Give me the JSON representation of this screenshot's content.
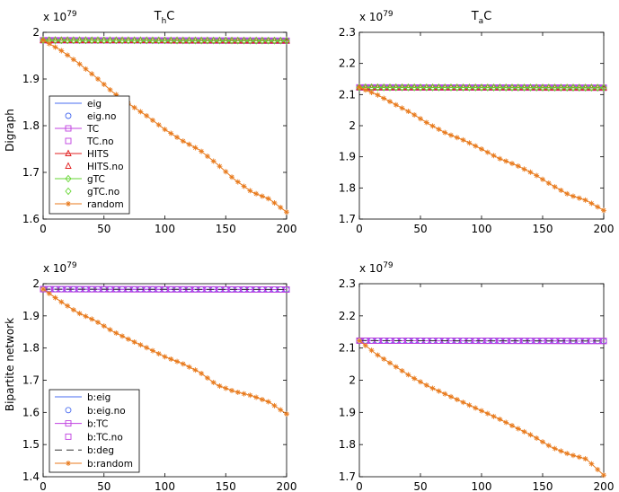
{
  "figure": {
    "row_labels": [
      "Digraph",
      "Bipartite network"
    ],
    "column_titles": [
      {
        "main": "T",
        "sub": "h",
        "rest": "C"
      },
      {
        "main": "T",
        "sub": "a",
        "rest": "C"
      }
    ],
    "exponent_label": {
      "base": "x 10",
      "exp": "79"
    },
    "colors": {
      "eig": "#4a6cf0",
      "TC": "#c040e0",
      "HITS": "#e02020",
      "gTC": "#66d633",
      "random": "#e87a1c",
      "deg": "#333333"
    }
  },
  "chart_data": [
    {
      "id": "p1",
      "row": 0,
      "col": 0,
      "type": "line",
      "title": "T_hC",
      "ylabel": "Digraph",
      "xlim": [
        0,
        200
      ],
      "ylim": [
        1.6,
        2.0
      ],
      "xticks": [
        0,
        50,
        100,
        150,
        200
      ],
      "xtick_labels": [
        "0",
        "50",
        "100",
        "150",
        "200"
      ],
      "yticks": [
        1.6,
        1.7,
        1.8,
        1.9,
        2.0
      ],
      "ytick_labels": [
        "1.6",
        "1.7",
        "1.8",
        "1.9",
        "2"
      ],
      "y_scale_note": "x 10^79",
      "series": [
        {
          "name": "eig",
          "color": "#4a6cf0",
          "marker": "none",
          "dash": "",
          "values": [
            1.983,
            1.982
          ]
        },
        {
          "name": "eig.no",
          "color": "#4a6cf0",
          "marker": "circle",
          "dash": "none",
          "values": [
            1.983,
            1.982
          ]
        },
        {
          "name": "TC",
          "color": "#c040e0",
          "marker": "square",
          "dash": "",
          "values": [
            1.983,
            1.982
          ]
        },
        {
          "name": "TC.no",
          "color": "#c040e0",
          "marker": "square",
          "dash": "none",
          "values": [
            1.983,
            1.982
          ]
        },
        {
          "name": "HITS",
          "color": "#e02020",
          "marker": "triangle",
          "dash": "",
          "values": [
            1.983,
            1.982
          ]
        },
        {
          "name": "HITS.no",
          "color": "#e02020",
          "marker": "triangle",
          "dash": "none",
          "values": [
            1.983,
            1.982
          ]
        },
        {
          "name": "gTC",
          "color": "#66d633",
          "marker": "diamond",
          "dash": "",
          "values": [
            1.983,
            1.982
          ]
        },
        {
          "name": "gTC.no",
          "color": "#66d633",
          "marker": "diamond",
          "dash": "none",
          "values": [
            1.983,
            1.982
          ]
        },
        {
          "name": "random",
          "color": "#e87a1c",
          "marker": "star",
          "dash": "",
          "values": [
            1.983,
            1.962,
            1.935,
            1.905,
            1.872,
            1.845,
            1.82,
            1.792,
            1.768,
            1.748,
            1.718,
            1.685,
            1.658,
            1.643,
            1.615
          ]
        }
      ],
      "legend": {
        "position": "left",
        "entries": [
          "eig",
          "eig.no",
          "TC",
          "TC.no",
          "HITS",
          "HITS.no",
          "gTC",
          "gTC.no",
          "random"
        ]
      }
    },
    {
      "id": "p2",
      "row": 0,
      "col": 1,
      "type": "line",
      "title": "T_aC",
      "xlim": [
        0,
        200
      ],
      "ylim": [
        1.7,
        2.3
      ],
      "xticks": [
        0,
        50,
        100,
        150,
        200
      ],
      "xtick_labels": [
        "0",
        "50",
        "100",
        "150",
        "200"
      ],
      "yticks": [
        1.7,
        1.8,
        1.9,
        2.0,
        2.1,
        2.2,
        2.3
      ],
      "ytick_labels": [
        "1.7",
        "1.8",
        "1.9",
        "2",
        "2.1",
        "2.2",
        "2.3"
      ],
      "y_scale_note": "x 10^79",
      "series": [
        {
          "name": "eig",
          "color": "#4a6cf0",
          "marker": "none",
          "dash": "",
          "values": [
            2.123,
            2.122
          ]
        },
        {
          "name": "eig.no",
          "color": "#4a6cf0",
          "marker": "circle",
          "dash": "none",
          "values": [
            2.123,
            2.122
          ]
        },
        {
          "name": "TC",
          "color": "#c040e0",
          "marker": "square",
          "dash": "",
          "values": [
            2.123,
            2.122
          ]
        },
        {
          "name": "TC.no",
          "color": "#c040e0",
          "marker": "square",
          "dash": "none",
          "values": [
            2.123,
            2.122
          ]
        },
        {
          "name": "HITS",
          "color": "#e02020",
          "marker": "triangle",
          "dash": "",
          "values": [
            2.123,
            2.122
          ]
        },
        {
          "name": "HITS.no",
          "color": "#e02020",
          "marker": "triangle",
          "dash": "none",
          "values": [
            2.123,
            2.122
          ]
        },
        {
          "name": "gTC",
          "color": "#66d633",
          "marker": "diamond",
          "dash": "",
          "values": [
            2.123,
            2.122
          ]
        },
        {
          "name": "gTC.no",
          "color": "#66d633",
          "marker": "diamond",
          "dash": "none",
          "values": [
            2.123,
            2.122
          ]
        },
        {
          "name": "random",
          "color": "#e87a1c",
          "marker": "star",
          "dash": "",
          "values": [
            2.123,
            2.1,
            2.07,
            2.04,
            2.005,
            1.975,
            1.953,
            1.925,
            1.895,
            1.873,
            1.845,
            1.81,
            1.778,
            1.76,
            1.728
          ]
        }
      ]
    },
    {
      "id": "p3",
      "row": 1,
      "col": 0,
      "type": "line",
      "ylabel": "Bipartite network",
      "xlim": [
        0,
        200
      ],
      "ylim": [
        1.4,
        2.0
      ],
      "xticks": [
        0,
        50,
        100,
        150,
        200
      ],
      "xtick_labels": [
        "0",
        "50",
        "100",
        "150",
        "200"
      ],
      "yticks": [
        1.4,
        1.5,
        1.6,
        1.7,
        1.8,
        1.9,
        2.0
      ],
      "ytick_labels": [
        "1.4",
        "1.5",
        "1.6",
        "1.7",
        "1.8",
        "1.9",
        "2"
      ],
      "y_scale_note": "x 10^79",
      "series": [
        {
          "name": "b:eig",
          "color": "#4a6cf0",
          "marker": "none",
          "dash": "",
          "values": [
            1.983,
            1.982
          ]
        },
        {
          "name": "b:eig.no",
          "color": "#4a6cf0",
          "marker": "circle",
          "dash": "none",
          "values": [
            1.983,
            1.982
          ]
        },
        {
          "name": "b:TC",
          "color": "#c040e0",
          "marker": "square",
          "dash": "",
          "values": [
            1.983,
            1.982
          ]
        },
        {
          "name": "b:TC.no",
          "color": "#c040e0",
          "marker": "square",
          "dash": "none",
          "values": [
            1.983,
            1.982
          ]
        },
        {
          "name": "b:deg",
          "color": "#333333",
          "marker": "none",
          "dash": "8,5",
          "values": [
            1.983,
            1.982
          ]
        },
        {
          "name": "b:random",
          "color": "#e87a1c",
          "marker": "star",
          "dash": "",
          "values": [
            1.983,
            1.945,
            1.91,
            1.885,
            1.852,
            1.825,
            1.8,
            1.773,
            1.752,
            1.725,
            1.685,
            1.665,
            1.652,
            1.632,
            1.595
          ]
        }
      ],
      "legend": {
        "position": "bottom-left",
        "entries": [
          "b:eig",
          "b:eig.no",
          "b:TC",
          "b:TC.no",
          "b:deg",
          "b:random"
        ]
      }
    },
    {
      "id": "p4",
      "row": 1,
      "col": 1,
      "type": "line",
      "xlim": [
        0,
        200
      ],
      "ylim": [
        1.7,
        2.3
      ],
      "xticks": [
        0,
        50,
        100,
        150,
        200
      ],
      "xtick_labels": [
        "0",
        "50",
        "100",
        "150",
        "200"
      ],
      "yticks": [
        1.7,
        1.8,
        1.9,
        2.0,
        2.1,
        2.2,
        2.3
      ],
      "ytick_labels": [
        "1.7",
        "1.8",
        "1.9",
        "2",
        "2.1",
        "2.2",
        "2.3"
      ],
      "y_scale_note": "x 10^79",
      "series": [
        {
          "name": "b:eig",
          "color": "#4a6cf0",
          "marker": "none",
          "dash": "",
          "values": [
            2.123,
            2.122
          ]
        },
        {
          "name": "b:eig.no",
          "color": "#4a6cf0",
          "marker": "circle",
          "dash": "none",
          "values": [
            2.123,
            2.122
          ]
        },
        {
          "name": "b:TC",
          "color": "#c040e0",
          "marker": "square",
          "dash": "",
          "values": [
            2.123,
            2.122
          ]
        },
        {
          "name": "b:TC.no",
          "color": "#c040e0",
          "marker": "square",
          "dash": "none",
          "values": [
            2.123,
            2.122
          ]
        },
        {
          "name": "b:deg",
          "color": "#333333",
          "marker": "none",
          "dash": "8,5",
          "values": [
            2.123,
            2.122
          ]
        },
        {
          "name": "b:random",
          "color": "#e87a1c",
          "marker": "star",
          "dash": "",
          "values": [
            2.123,
            2.08,
            2.045,
            2.01,
            1.98,
            1.955,
            1.93,
            1.905,
            1.88,
            1.852,
            1.825,
            1.792,
            1.77,
            1.755,
            1.705
          ]
        }
      ]
    }
  ]
}
